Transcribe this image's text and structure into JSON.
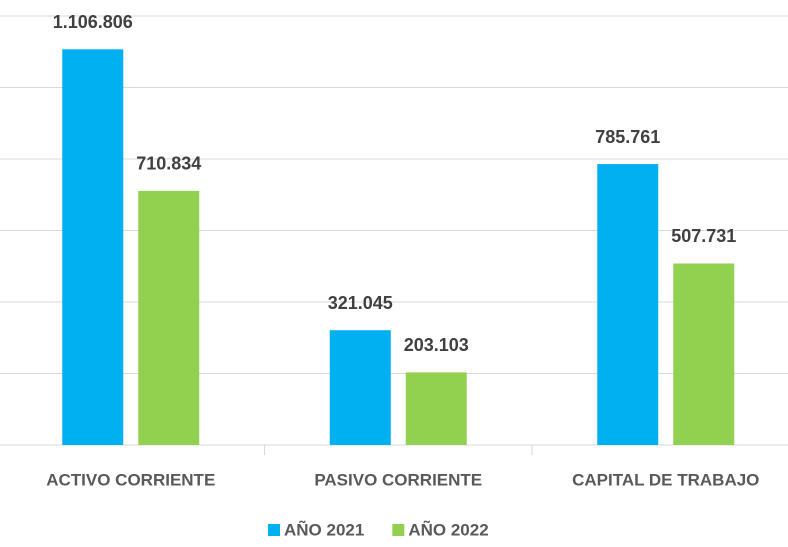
{
  "chart_data": {
    "type": "bar",
    "categories": [
      "ACTIVO CORRIENTE",
      "PASIVO CORRIENTE",
      "CAPITAL DE TRABAJO"
    ],
    "series": [
      {
        "name": "AÑO 2021",
        "color": "#00b0f0",
        "values": [
          1106806,
          321045,
          785761
        ],
        "value_labels": [
          "1.106.806",
          "321.045",
          "785.761"
        ]
      },
      {
        "name": "AÑO 2022",
        "color": "#92d050",
        "values": [
          710834,
          203103,
          507731
        ],
        "value_labels": [
          "710.834",
          "203.103",
          "507.731"
        ]
      }
    ],
    "ylim": [
      0,
      1200000
    ],
    "yticks": [
      0,
      200000,
      400000,
      600000,
      800000,
      1000000,
      1200000
    ],
    "grid": true
  }
}
